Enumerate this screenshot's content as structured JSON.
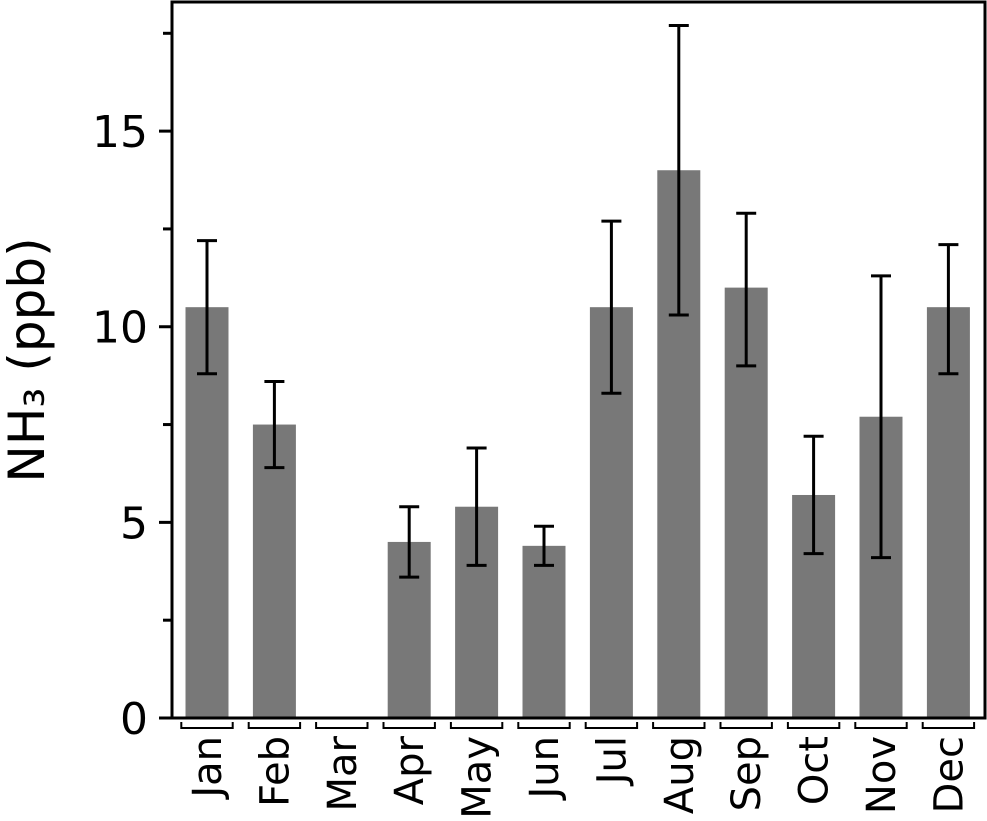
{
  "chart_data": {
    "type": "bar",
    "title": "",
    "xlabel": "",
    "ylabel": "NH₃ (ppb)",
    "categories": [
      "Jan",
      "Feb",
      "Mar",
      "Apr",
      "May",
      "Jun",
      "Jul",
      "Aug",
      "Sep",
      "Oct",
      "Nov",
      "Dec"
    ],
    "values": [
      10.5,
      7.5,
      null,
      4.5,
      5.4,
      4.4,
      10.5,
      14.0,
      11.0,
      5.7,
      7.7,
      10.5
    ],
    "error_low": [
      8.8,
      6.4,
      null,
      3.6,
      3.9,
      3.9,
      8.3,
      10.3,
      9.0,
      4.2,
      4.1,
      8.8
    ],
    "error_high": [
      12.2,
      8.6,
      null,
      5.4,
      6.9,
      4.9,
      12.7,
      17.7,
      12.9,
      7.2,
      11.3,
      12.1
    ],
    "ylim": [
      0,
      18.3
    ],
    "yticks_major": [
      0,
      5,
      10,
      15
    ],
    "yticks_minor": [
      2.5,
      7.5,
      12.5,
      17.5
    ],
    "grid": false,
    "legend": "none",
    "bar_color": "#787878",
    "error_color": "#000000"
  }
}
